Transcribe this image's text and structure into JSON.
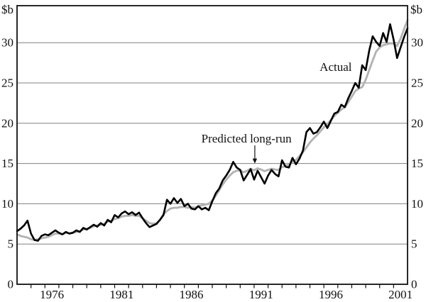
{
  "chart_data": {
    "type": "line",
    "title": "",
    "unit_left": "$b",
    "unit_right": "$b",
    "x_start": 1973.5,
    "x_step": 0.25,
    "x_label_years": [
      1976,
      1981,
      1986,
      1991,
      1996,
      2001
    ],
    "x_tick_years": [
      1974.5,
      1975.5,
      1976.5,
      1977.5,
      1978.5,
      1979.5,
      1980.5,
      1981.5,
      1982.5,
      1983.5,
      1984.5,
      1985.5,
      1986.5,
      1987.5,
      1988.5,
      1989.5,
      1990.5,
      1991.5,
      1992.5,
      1993.5,
      1994.5,
      1995.5,
      1996.5,
      1997.5,
      1998.5,
      1999.5,
      2000.5
    ],
    "yticks": [
      0,
      5,
      10,
      15,
      20,
      25,
      30
    ],
    "ylim": [
      0,
      34.6
    ],
    "grid": true,
    "legend_position": "inline-annotations",
    "colors": {
      "actual": "#000000",
      "predicted": "#b3b3b3",
      "grid": "#808080",
      "frame": "#111111",
      "text": "#111111"
    },
    "series": [
      {
        "name": "Actual",
        "color_key": "actual",
        "values": [
          6.6,
          6.9,
          7.3,
          7.9,
          6.3,
          5.5,
          5.4,
          6.0,
          6.2,
          6.1,
          6.4,
          6.7,
          6.4,
          6.2,
          6.5,
          6.3,
          6.4,
          6.7,
          6.5,
          7.0,
          6.8,
          7.1,
          7.4,
          7.15,
          7.6,
          7.3,
          8.0,
          7.7,
          8.6,
          8.3,
          8.8,
          9.05,
          8.7,
          8.95,
          8.6,
          8.9,
          8.2,
          7.6,
          7.1,
          7.3,
          7.5,
          8.0,
          8.6,
          10.5,
          10.0,
          10.7,
          10.1,
          10.6,
          9.7,
          10.0,
          9.4,
          9.3,
          9.7,
          9.3,
          9.5,
          9.2,
          10.3,
          11.3,
          11.9,
          12.9,
          13.5,
          14.2,
          15.2,
          14.5,
          14.2,
          12.9,
          13.6,
          14.3,
          13.0,
          14.1,
          13.3,
          12.5,
          13.5,
          14.2,
          13.7,
          13.4,
          15.4,
          14.6,
          14.5,
          15.7,
          14.9,
          15.6,
          16.6,
          18.9,
          19.4,
          18.7,
          18.9,
          19.5,
          20.2,
          19.4,
          20.3,
          21.2,
          21.4,
          22.3,
          22.0,
          23.1,
          24.0,
          25.0,
          24.4,
          27.2,
          26.6,
          29.0,
          30.8,
          30.1,
          29.6,
          31.2,
          30.1,
          32.3,
          30.4,
          28.1,
          29.4,
          30.7,
          31.8
        ]
      },
      {
        "name": "Predicted long-run",
        "color_key": "predicted",
        "values": [
          6.2,
          6.0,
          5.9,
          5.8,
          5.6,
          5.5,
          5.6,
          5.7,
          5.8,
          5.9,
          6.1,
          6.3,
          6.3,
          6.2,
          6.4,
          6.3,
          6.4,
          6.5,
          6.6,
          6.8,
          6.9,
          7.0,
          7.2,
          7.3,
          7.4,
          7.5,
          7.8,
          7.9,
          8.1,
          8.2,
          8.4,
          8.5,
          8.5,
          8.6,
          8.5,
          8.5,
          8.2,
          7.9,
          7.6,
          7.5,
          7.6,
          8.0,
          8.7,
          9.1,
          9.4,
          9.5,
          9.5,
          9.6,
          9.6,
          9.5,
          9.6,
          9.5,
          9.7,
          9.8,
          9.9,
          10.0,
          10.4,
          11.0,
          11.7,
          12.4,
          13.0,
          13.5,
          13.9,
          14.1,
          14.15,
          13.9,
          14.1,
          14.35,
          14.15,
          14.4,
          14.25,
          14.05,
          14.2,
          14.35,
          14.25,
          14.2,
          14.55,
          14.7,
          14.85,
          15.2,
          15.45,
          15.9,
          16.4,
          17.0,
          17.6,
          18.1,
          18.5,
          19.0,
          19.5,
          19.9,
          20.4,
          20.9,
          21.3,
          21.7,
          22.0,
          22.6,
          23.3,
          24.0,
          24.3,
          24.5,
          25.4,
          26.6,
          27.8,
          28.9,
          29.4,
          29.7,
          29.8,
          29.9,
          29.9,
          29.6,
          30.5,
          31.7,
          32.8
        ]
      }
    ],
    "annotations": [
      {
        "id": "actual",
        "text": "Actual",
        "x": 1996.35,
        "y": 26.5,
        "anchor": "middle"
      },
      {
        "id": "predicted",
        "text": "Predicted long-run",
        "x": 1989.95,
        "y": 17.6,
        "anchor": "middle",
        "arrow": {
          "x": 1990.55,
          "y_from": 17.25,
          "y_to": 15.0
        }
      }
    ]
  }
}
